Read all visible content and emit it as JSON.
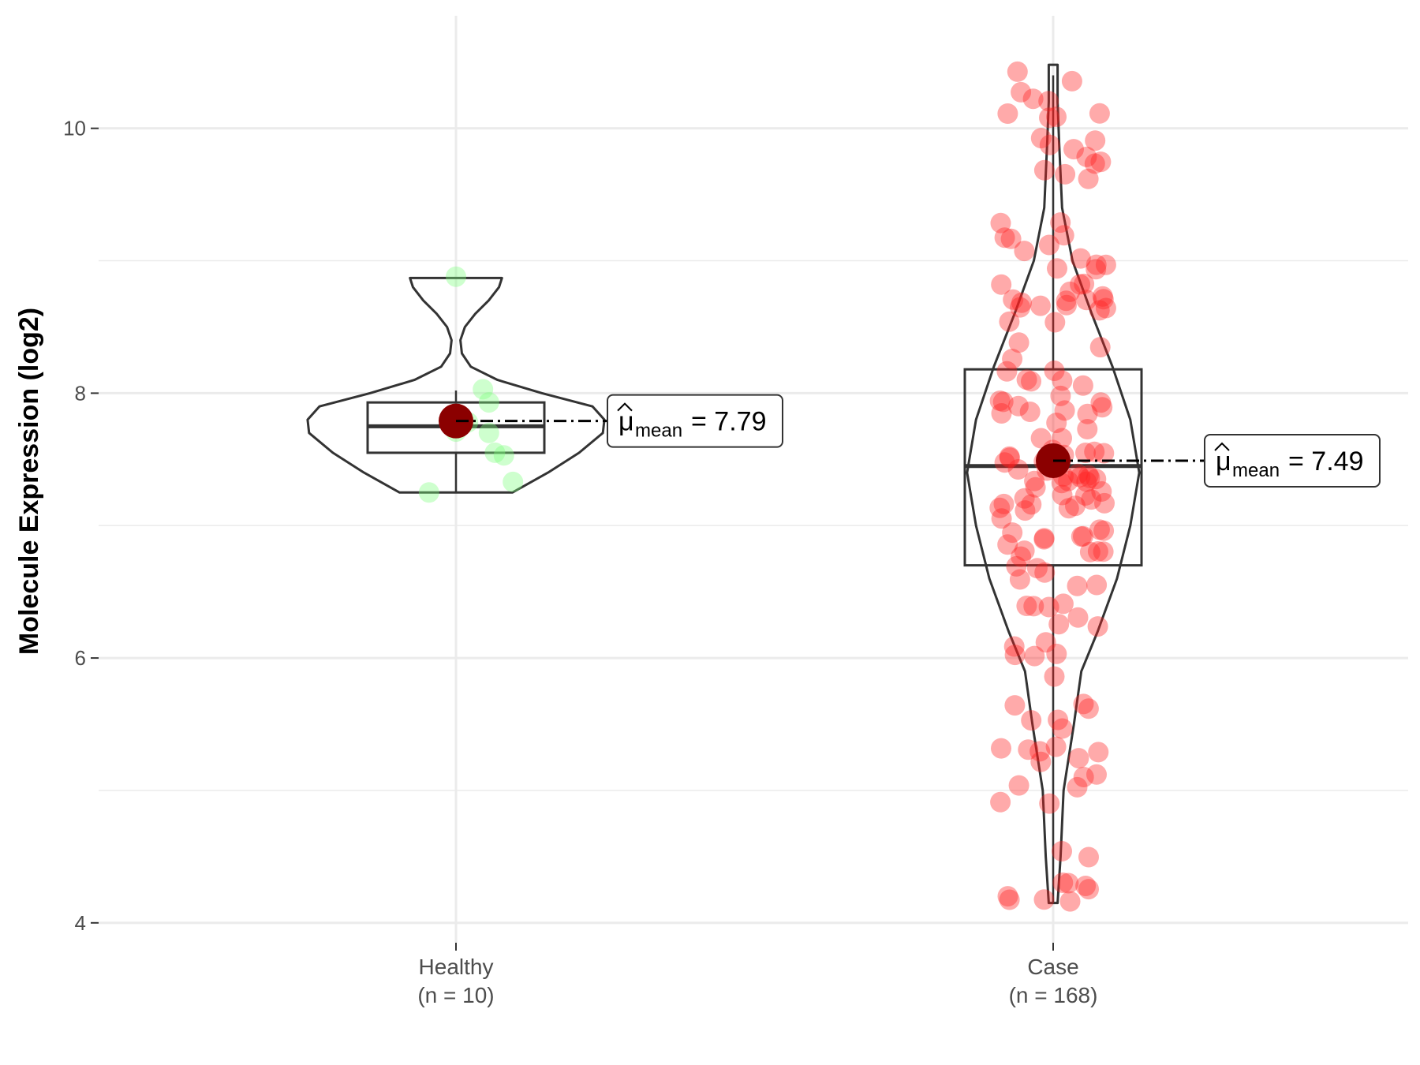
{
  "chart_data": {
    "type": "violin-box-scatter",
    "title": "",
    "xlabel": "",
    "ylabel": "Molecule Expression (log2)",
    "ylim": [
      3.85,
      10.85
    ],
    "yticks": [
      4,
      6,
      8,
      10
    ],
    "grid": true,
    "legend": "none",
    "groups": [
      {
        "name": "Healthy",
        "n_label": "(n = 10)",
        "color": "#7fff7f",
        "box": {
          "q1": 7.55,
          "median": 7.75,
          "q3": 7.93,
          "whisker_low": 7.25,
          "whisker_high": 8.02
        },
        "mean": 7.79,
        "mean_label": "7.79",
        "violin": [
          {
            "y": 7.25,
            "w": 0.38
          },
          {
            "y": 7.4,
            "w": 0.62
          },
          {
            "y": 7.55,
            "w": 0.83
          },
          {
            "y": 7.7,
            "w": 0.99
          },
          {
            "y": 7.8,
            "w": 1.0
          },
          {
            "y": 7.9,
            "w": 0.92
          },
          {
            "y": 8.0,
            "w": 0.58
          },
          {
            "y": 8.1,
            "w": 0.28
          },
          {
            "y": 8.2,
            "w": 0.1
          },
          {
            "y": 8.3,
            "w": 0.04
          },
          {
            "y": 8.4,
            "w": 0.03
          },
          {
            "y": 8.5,
            "w": 0.06
          },
          {
            "y": 8.6,
            "w": 0.13
          },
          {
            "y": 8.7,
            "w": 0.22
          },
          {
            "y": 8.8,
            "w": 0.29
          },
          {
            "y": 8.87,
            "w": 0.31
          }
        ],
        "points": [
          {
            "dx": -0.09,
            "y": 7.25
          },
          {
            "dx": 0.0,
            "y": 7.71
          },
          {
            "dx": 0.04,
            "y": 7.78
          },
          {
            "dx": 0.11,
            "y": 7.7
          },
          {
            "dx": 0.13,
            "y": 7.55
          },
          {
            "dx": 0.16,
            "y": 7.53
          },
          {
            "dx": 0.19,
            "y": 7.33
          },
          {
            "dx": 0.09,
            "y": 8.03
          },
          {
            "dx": 0.11,
            "y": 7.93
          },
          {
            "dx": 0.0,
            "y": 8.88
          }
        ]
      },
      {
        "name": "Case",
        "n_label": "(n = 168)",
        "color": "#ff2020",
        "box": {
          "q1": 6.7,
          "median": 7.45,
          "q3": 8.18,
          "whisker_low": 4.15,
          "whisker_high": 10.4
        },
        "mean": 7.49,
        "mean_label": "7.49",
        "violin": [
          {
            "y": 4.15,
            "w": 0.03
          },
          {
            "y": 4.5,
            "w": 0.05
          },
          {
            "y": 5.0,
            "w": 0.07
          },
          {
            "y": 5.5,
            "w": 0.14
          },
          {
            "y": 5.9,
            "w": 0.19
          },
          {
            "y": 6.2,
            "w": 0.3
          },
          {
            "y": 6.6,
            "w": 0.43
          },
          {
            "y": 7.0,
            "w": 0.52
          },
          {
            "y": 7.4,
            "w": 0.58
          },
          {
            "y": 7.8,
            "w": 0.52
          },
          {
            "y": 8.2,
            "w": 0.4
          },
          {
            "y": 8.6,
            "w": 0.26
          },
          {
            "y": 9.0,
            "w": 0.13
          },
          {
            "y": 9.4,
            "w": 0.06
          },
          {
            "y": 9.9,
            "w": 0.04
          },
          {
            "y": 10.2,
            "w": 0.03
          },
          {
            "y": 10.48,
            "w": 0.03
          }
        ]
      }
    ],
    "scatter_seed": 20240517
  }
}
